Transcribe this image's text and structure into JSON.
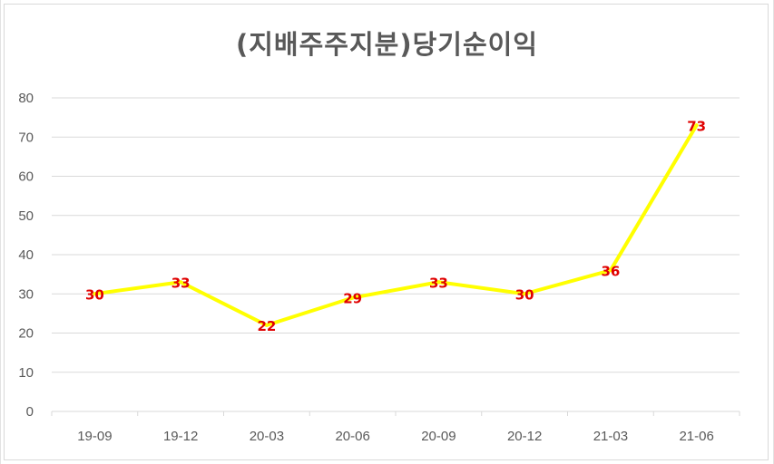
{
  "chart_data": {
    "type": "line",
    "title": "(지배주주지분)당기순이익",
    "categories": [
      "19-09",
      "19-12",
      "20-03",
      "20-06",
      "20-09",
      "20-12",
      "21-03",
      "21-06"
    ],
    "series": [
      {
        "values": [
          30,
          33,
          22,
          29,
          33,
          30,
          36,
          73
        ],
        "color": "#ffff00"
      }
    ],
    "ylim": [
      0,
      80
    ],
    "yticks": [
      0,
      10,
      20,
      30,
      40,
      50,
      60,
      70,
      80
    ],
    "grid": true,
    "legend": "none",
    "data_label_color": "#e00000",
    "gridline_color": "#d9d9d9",
    "axis_text_color": "#595959"
  }
}
